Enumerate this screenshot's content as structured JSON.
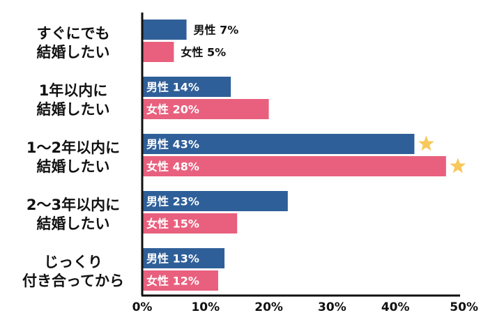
{
  "colors": {
    "male": "#2f5f98",
    "female": "#e8607e",
    "star": "#f7c85a",
    "axis": "#111111",
    "inside_text": "#ffffff",
    "outside_text": "#111111"
  },
  "chart_data": {
    "type": "bar",
    "orientation": "horizontal",
    "title": "",
    "xlabel": "",
    "ylabel": "",
    "xlim": [
      0,
      50
    ],
    "ticks": [
      "0%",
      "10%",
      "20%",
      "30%",
      "40%",
      "50%"
    ],
    "grid": false,
    "categories": [
      [
        "すぐにでも",
        "結婚したい"
      ],
      [
        "1年以内に",
        "結婚したい"
      ],
      [
        "1～2年以内に",
        "結婚したい"
      ],
      [
        "2～3年以内に",
        "結婚したい"
      ],
      [
        "じっくり",
        "付き合ってから"
      ]
    ],
    "series": [
      {
        "name": "男性",
        "values": [
          7,
          14,
          43,
          23,
          13
        ],
        "labels": [
          "男性 7%",
          "男性 14%",
          "男性 43%",
          "男性 23%",
          "男性 13%"
        ]
      },
      {
        "name": "女性",
        "values": [
          5,
          20,
          48,
          15,
          12
        ],
        "labels": [
          "女性 5%",
          "女性 20%",
          "女性 48%",
          "女性 15%",
          "女性 12%"
        ]
      }
    ],
    "highlight": {
      "category_index": 2,
      "icon": "star-icon"
    }
  }
}
